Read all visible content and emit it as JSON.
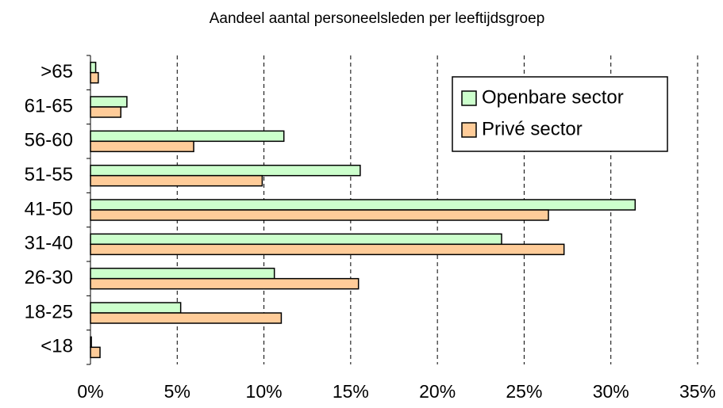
{
  "chart_data": {
    "type": "bar",
    "orientation": "horizontal",
    "title": "Aandeel aantal personeelsleden per leeftijdsgroep",
    "categories": [
      ">65",
      "61-65",
      "56-60",
      "51-55",
      "41-50",
      "31-40",
      "26-30",
      "18-25",
      "<18"
    ],
    "series": [
      {
        "name": "Openbare sector",
        "color": "#ccffcc",
        "values": [
          0.3,
          2.1,
          11.15,
          15.55,
          31.4,
          23.7,
          10.6,
          5.2,
          0.05
        ]
      },
      {
        "name": "Privé sector",
        "color": "#ffcc99",
        "values": [
          0.45,
          1.75,
          5.95,
          9.9,
          26.4,
          27.3,
          15.45,
          11.0,
          0.55
        ]
      }
    ],
    "xlim": [
      0,
      35
    ],
    "xticks": [
      {
        "value": 0,
        "label": "0%"
      },
      {
        "value": 5,
        "label": "5%"
      },
      {
        "value": 10,
        "label": "10%"
      },
      {
        "value": 15,
        "label": "15%"
      },
      {
        "value": 20,
        "label": "20%"
      },
      {
        "value": 25,
        "label": "25%"
      },
      {
        "value": 30,
        "label": "30%"
      },
      {
        "value": 35,
        "label": "35%"
      }
    ],
    "grid": true,
    "legend": "upper right"
  }
}
